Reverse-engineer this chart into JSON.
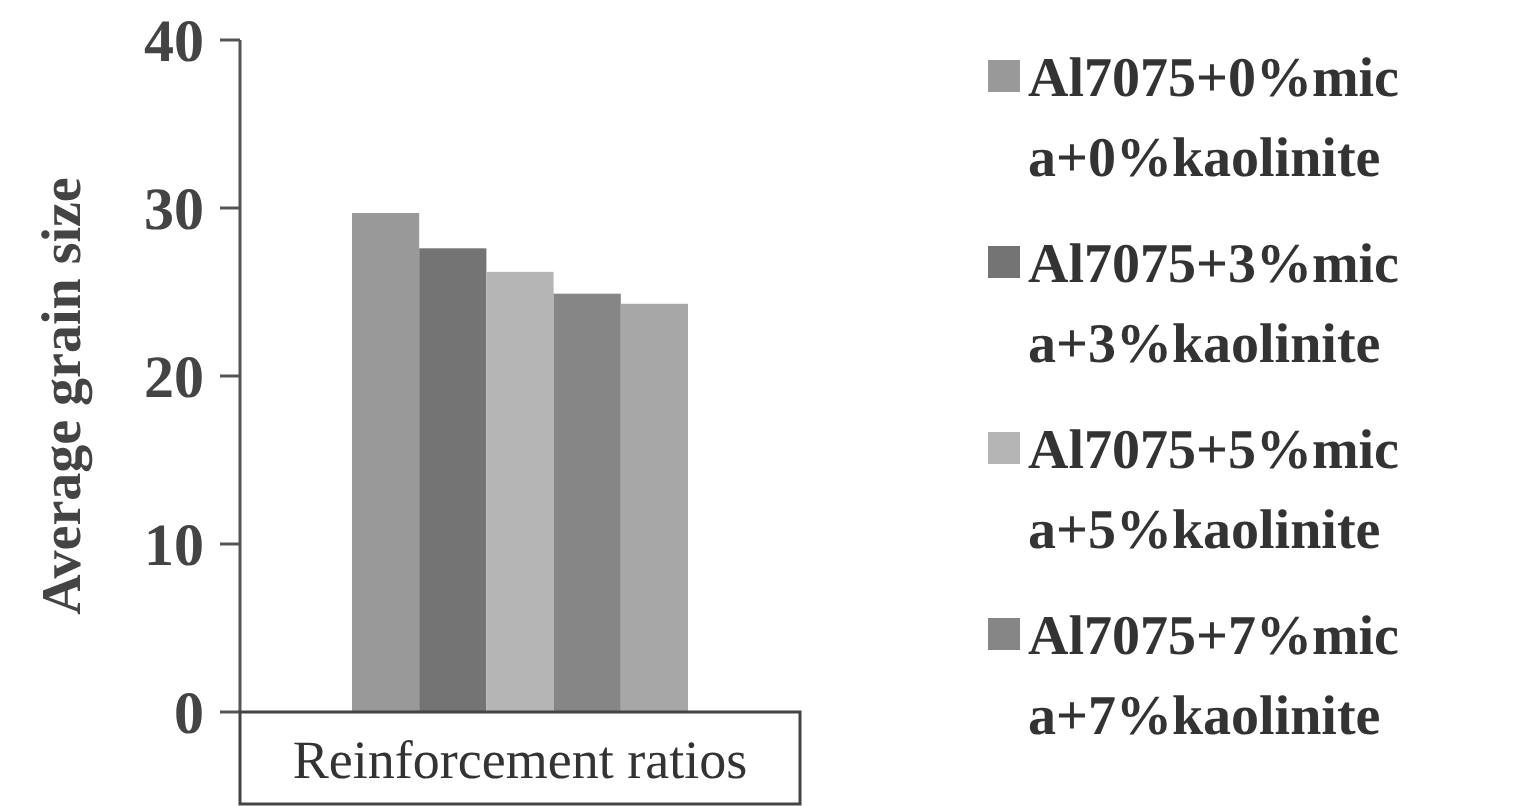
{
  "chart_data": {
    "type": "bar",
    "ylabel": "Average grain size",
    "categories": [
      "Reinforcement ratios"
    ],
    "series": [
      {
        "name": "Al7075+0%mica+0%kaolinite",
        "color": "#999999",
        "values": [
          29.7
        ]
      },
      {
        "name": "Al7075+3%mica+3%kaolinite",
        "color": "#747474",
        "values": [
          27.6
        ]
      },
      {
        "name": "Al7075+5%mica+5%kaolinite",
        "color": "#b5b5b5",
        "values": [
          26.2
        ]
      },
      {
        "name": "Al7075+7%mica+7%kaolinite",
        "color": "#868687",
        "values": [
          24.9
        ]
      },
      {
        "color": "#a7a7a7",
        "values": [
          24.3
        ]
      }
    ],
    "ylim": [
      0,
      40
    ],
    "yticks": [
      0,
      10,
      20,
      30,
      40
    ],
    "grid": false,
    "legend": "right"
  }
}
